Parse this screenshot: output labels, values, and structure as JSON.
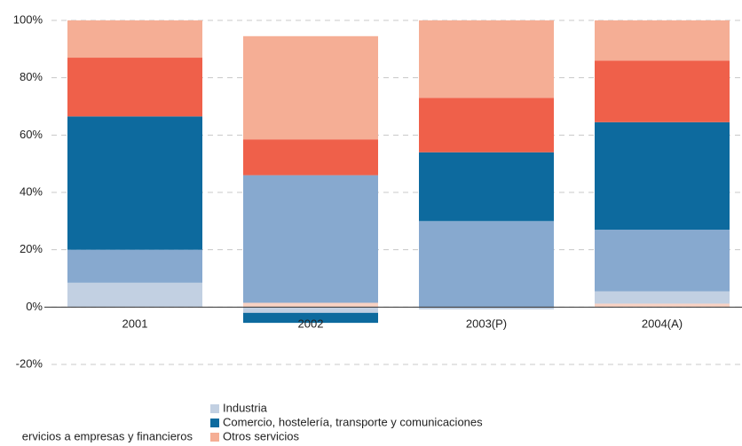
{
  "chart_data": {
    "type": "stacked_bar",
    "categories": [
      "2001",
      "2002",
      "2003(P)",
      "2004(A)"
    ],
    "series": [
      {
        "name": null,
        "color": "#f8d2c3",
        "values": [
          0,
          1.5,
          0,
          1.2
        ]
      },
      {
        "name": "Industria",
        "color": "#c2d0e2",
        "values": [
          8.5,
          -2,
          -0.8,
          4.3
        ]
      },
      {
        "name": "ervicios a empresas y financieros",
        "color": "#87a9cf",
        "values": [
          11.5,
          44.5,
          30,
          21.5
        ]
      },
      {
        "name": "Comercio, hostelería, transporte y comunicaciones",
        "color": "#0d6a9e",
        "values": [
          46.5,
          -3.5,
          24,
          37.5
        ]
      },
      {
        "name": null,
        "color": "#ef604a",
        "values": [
          20.5,
          12.5,
          19,
          21.5
        ]
      },
      {
        "name": "Otros servicios",
        "color": "#f5ae95",
        "values": [
          13,
          36,
          27,
          14
        ]
      }
    ],
    "ylim": [
      -20,
      100
    ],
    "yticks": [
      {
        "value": -20,
        "label": "-20%"
      },
      {
        "value": 0,
        "label": "0%"
      },
      {
        "value": 20,
        "label": "20%"
      },
      {
        "value": 40,
        "label": "40%"
      },
      {
        "value": 60,
        "label": "60%"
      },
      {
        "value": 80,
        "label": "80%"
      },
      {
        "value": 100,
        "label": "100%"
      }
    ],
    "grid": true
  }
}
